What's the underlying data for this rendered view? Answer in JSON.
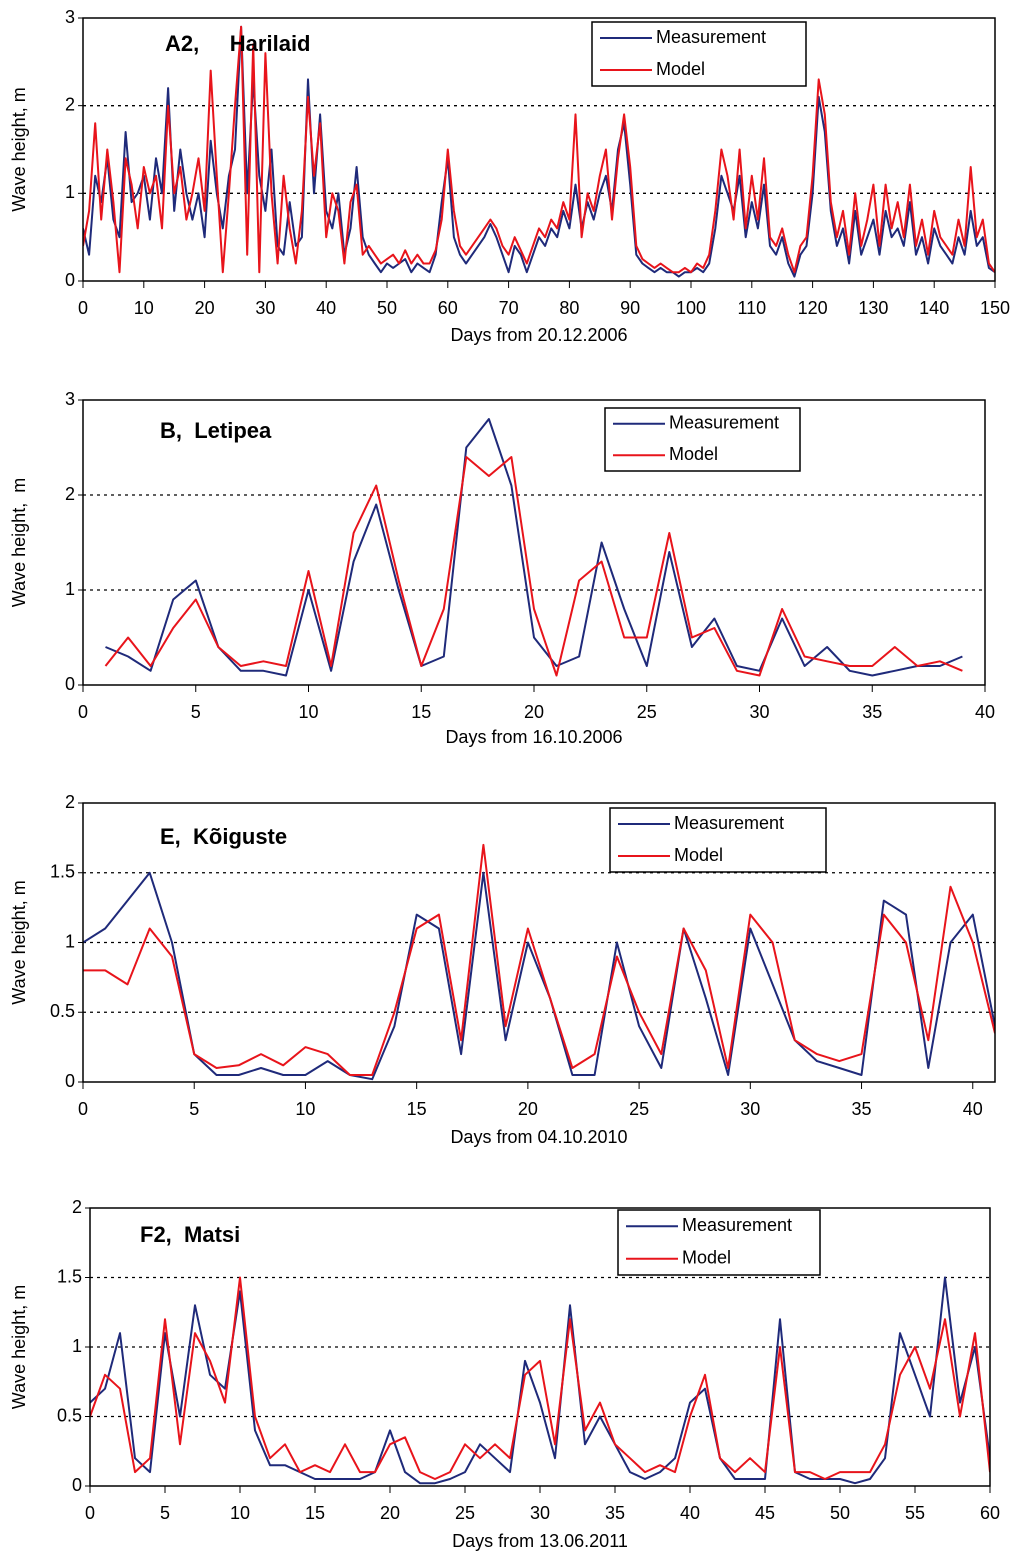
{
  "chart_data": [
    {
      "type": "line",
      "title": "A2,     Harilaid",
      "x_label": "Days from 20.12.2006",
      "y_label": "Wave height, m",
      "xlim": [
        0,
        150
      ],
      "ylim": [
        0,
        3
      ],
      "xticks": [
        0,
        10,
        20,
        30,
        40,
        50,
        60,
        70,
        80,
        90,
        100,
        110,
        120,
        130,
        140,
        150
      ],
      "yticks": [
        0,
        1,
        2,
        3
      ],
      "grid": true,
      "legend": "upper right",
      "x": [
        0,
        1,
        2,
        3,
        4,
        5,
        6,
        7,
        8,
        9,
        10,
        11,
        12,
        13,
        14,
        15,
        16,
        17,
        18,
        19,
        20,
        21,
        22,
        23,
        24,
        25,
        26,
        27,
        28,
        29,
        30,
        31,
        32,
        33,
        34,
        35,
        36,
        37,
        38,
        39,
        40,
        41,
        42,
        43,
        44,
        45,
        46,
        47,
        48,
        49,
        50,
        51,
        52,
        53,
        54,
        55,
        56,
        57,
        58,
        59,
        60,
        61,
        62,
        63,
        64,
        65,
        66,
        67,
        68,
        69,
        70,
        71,
        72,
        73,
        74,
        75,
        76,
        77,
        78,
        79,
        80,
        81,
        82,
        83,
        84,
        85,
        86,
        87,
        88,
        89,
        90,
        91,
        92,
        93,
        94,
        95,
        96,
        97,
        98,
        99,
        100,
        101,
        102,
        103,
        104,
        105,
        106,
        107,
        108,
        109,
        110,
        111,
        112,
        113,
        114,
        115,
        116,
        117,
        118,
        119,
        120,
        121,
        122,
        123,
        124,
        125,
        126,
        127,
        128,
        129,
        130,
        131,
        132,
        133,
        134,
        135,
        136,
        137,
        138,
        139,
        140,
        141,
        142,
        143,
        144,
        145,
        146,
        147,
        148,
        149,
        150
      ],
      "series": [
        {
          "name": "Measurement",
          "color": "#1f2a7a",
          "values": [
            0.6,
            0.3,
            1.2,
            0.9,
            1.4,
            0.7,
            0.5,
            1.7,
            0.9,
            1.0,
            1.2,
            0.7,
            1.4,
            1.0,
            2.2,
            0.8,
            1.5,
            1.0,
            0.7,
            1.0,
            0.5,
            1.6,
            1.0,
            0.6,
            1.2,
            1.5,
            2.9,
            1.0,
            2.3,
            1.2,
            0.8,
            1.5,
            0.4,
            0.3,
            0.9,
            0.4,
            0.5,
            2.3,
            1.0,
            1.9,
            0.8,
            0.6,
            1.0,
            0.3,
            0.6,
            1.3,
            0.5,
            0.3,
            0.2,
            0.1,
            0.2,
            0.15,
            0.2,
            0.25,
            0.1,
            0.2,
            0.15,
            0.1,
            0.3,
            0.9,
            1.4,
            0.5,
            0.3,
            0.2,
            0.3,
            0.4,
            0.5,
            0.65,
            0.5,
            0.3,
            0.1,
            0.4,
            0.3,
            0.1,
            0.3,
            0.5,
            0.4,
            0.6,
            0.5,
            0.8,
            0.6,
            1.1,
            0.6,
            0.9,
            0.7,
            1.0,
            1.2,
            0.8,
            1.5,
            1.8,
            1.1,
            0.3,
            0.2,
            0.15,
            0.1,
            0.15,
            0.1,
            0.1,
            0.05,
            0.1,
            0.1,
            0.15,
            0.1,
            0.2,
            0.6,
            1.2,
            1.0,
            0.8,
            1.2,
            0.5,
            0.9,
            0.6,
            1.1,
            0.4,
            0.3,
            0.5,
            0.2,
            0.05,
            0.3,
            0.4,
            1.0,
            2.1,
            1.7,
            0.8,
            0.4,
            0.6,
            0.2,
            0.8,
            0.3,
            0.5,
            0.7,
            0.3,
            0.8,
            0.5,
            0.6,
            0.4,
            0.9,
            0.3,
            0.5,
            0.2,
            0.6,
            0.4,
            0.3,
            0.2,
            0.5,
            0.3,
            0.8,
            0.4,
            0.5,
            0.15,
            0.1
          ]
        },
        {
          "name": "Model",
          "color": "#e8141b",
          "values": [
            0.4,
            0.8,
            1.8,
            0.7,
            1.5,
            0.9,
            0.1,
            1.4,
            1.1,
            0.6,
            1.3,
            1.0,
            1.2,
            0.6,
            2.0,
            1.0,
            1.3,
            0.7,
            1.0,
            1.4,
            0.8,
            2.4,
            1.2,
            0.1,
            1.0,
            2.0,
            2.9,
            0.3,
            2.7,
            0.1,
            2.6,
            1.0,
            0.2,
            1.2,
            0.6,
            0.2,
            0.8,
            2.1,
            1.2,
            1.8,
            0.5,
            1.0,
            0.8,
            0.2,
            0.9,
            1.1,
            0.3,
            0.4,
            0.3,
            0.2,
            0.25,
            0.3,
            0.2,
            0.35,
            0.2,
            0.3,
            0.2,
            0.2,
            0.35,
            0.7,
            1.5,
            0.8,
            0.4,
            0.3,
            0.4,
            0.5,
            0.6,
            0.7,
            0.6,
            0.4,
            0.3,
            0.5,
            0.35,
            0.2,
            0.4,
            0.6,
            0.5,
            0.7,
            0.6,
            0.9,
            0.7,
            1.9,
            0.5,
            1.0,
            0.8,
            1.2,
            1.5,
            0.7,
            1.4,
            1.9,
            1.3,
            0.4,
            0.25,
            0.2,
            0.15,
            0.2,
            0.15,
            0.1,
            0.1,
            0.15,
            0.1,
            0.2,
            0.15,
            0.3,
            0.8,
            1.5,
            1.2,
            0.7,
            1.5,
            0.6,
            1.2,
            0.7,
            1.4,
            0.5,
            0.4,
            0.6,
            0.3,
            0.1,
            0.4,
            0.5,
            1.2,
            2.3,
            1.9,
            0.9,
            0.5,
            0.8,
            0.3,
            1.0,
            0.4,
            0.7,
            1.1,
            0.4,
            1.1,
            0.6,
            0.9,
            0.5,
            1.1,
            0.4,
            0.7,
            0.3,
            0.8,
            0.5,
            0.4,
            0.3,
            0.7,
            0.4,
            1.3,
            0.5,
            0.7,
            0.2,
            0.1
          ]
        }
      ]
    },
    {
      "type": "line",
      "title": "B,  Letipea",
      "x_label": "Days from 16.10.2006",
      "y_label": "Wave height,  m",
      "xlim": [
        0,
        40
      ],
      "ylim": [
        0,
        3
      ],
      "xticks": [
        0,
        5,
        10,
        15,
        20,
        25,
        30,
        35,
        40
      ],
      "yticks": [
        0,
        1,
        2,
        3
      ],
      "grid": true,
      "legend": "upper right",
      "x": [
        1,
        2,
        3,
        4,
        5,
        6,
        7,
        8,
        9,
        10,
        11,
        12,
        13,
        14,
        15,
        16,
        17,
        18,
        19,
        20,
        21,
        22,
        23,
        24,
        25,
        26,
        27,
        28,
        29,
        30,
        31,
        32,
        33,
        34,
        35,
        36,
        37,
        38,
        39
      ],
      "series": [
        {
          "name": "Measurement",
          "color": "#1f2a7a",
          "values": [
            0.4,
            0.3,
            0.15,
            0.9,
            1.1,
            0.4,
            0.15,
            0.15,
            0.1,
            1.0,
            0.15,
            1.3,
            1.9,
            1.0,
            0.2,
            0.3,
            2.5,
            2.8,
            2.1,
            0.5,
            0.2,
            0.3,
            1.5,
            0.8,
            0.2,
            1.4,
            0.4,
            0.7,
            0.2,
            0.15,
            0.7,
            0.2,
            0.4,
            0.15,
            0.1,
            0.15,
            0.2,
            0.2,
            0.3
          ]
        },
        {
          "name": "Model",
          "color": "#e8141b",
          "values": [
            0.2,
            0.5,
            0.2,
            0.6,
            0.9,
            0.4,
            0.2,
            0.25,
            0.2,
            1.2,
            0.2,
            1.6,
            2.1,
            1.1,
            0.2,
            0.8,
            2.4,
            2.2,
            2.4,
            0.8,
            0.1,
            1.1,
            1.3,
            0.5,
            0.5,
            1.6,
            0.5,
            0.6,
            0.15,
            0.1,
            0.8,
            0.3,
            0.25,
            0.2,
            0.2,
            0.4,
            0.2,
            0.25,
            0.15
          ]
        }
      ]
    },
    {
      "type": "line",
      "title": "E,  Kõiguste",
      "x_label": "Days from 04.10.2010",
      "y_label": "Wave height, m",
      "xlim": [
        0,
        41
      ],
      "ylim": [
        0,
        2
      ],
      "xticks": [
        0,
        5,
        10,
        15,
        20,
        25,
        30,
        35,
        40
      ],
      "yticks": [
        0,
        0.5,
        1,
        1.5,
        2
      ],
      "grid": true,
      "legend": "upper right",
      "x": [
        0,
        1,
        2,
        3,
        4,
        5,
        6,
        7,
        8,
        9,
        10,
        11,
        12,
        13,
        14,
        15,
        16,
        17,
        18,
        19,
        20,
        21,
        22,
        23,
        24,
        25,
        26,
        27,
        28,
        29,
        30,
        31,
        32,
        33,
        34,
        35,
        36,
        37,
        38,
        39,
        40,
        41
      ],
      "series": [
        {
          "name": "Measurement",
          "color": "#1f2a7a",
          "values": [
            1.0,
            1.1,
            1.3,
            1.5,
            1.0,
            0.2,
            0.05,
            0.05,
            0.1,
            0.05,
            0.05,
            0.15,
            0.05,
            0.02,
            0.4,
            1.2,
            1.1,
            0.2,
            1.5,
            0.3,
            1.0,
            0.6,
            0.05,
            0.05,
            1.0,
            0.4,
            0.1,
            1.1,
            0.6,
            0.05,
            1.1,
            0.7,
            0.3,
            0.15,
            0.1,
            0.05,
            1.3,
            1.2,
            0.1,
            1.0,
            1.2,
            0.4
          ]
        },
        {
          "name": "Model",
          "color": "#e8141b",
          "values": [
            0.8,
            0.8,
            0.7,
            1.1,
            0.9,
            0.2,
            0.1,
            0.12,
            0.2,
            0.12,
            0.25,
            0.2,
            0.05,
            0.05,
            0.5,
            1.1,
            1.2,
            0.3,
            1.7,
            0.4,
            1.1,
            0.6,
            0.1,
            0.2,
            0.9,
            0.5,
            0.2,
            1.1,
            0.8,
            0.1,
            1.2,
            1.0,
            0.3,
            0.2,
            0.15,
            0.2,
            1.2,
            1.0,
            0.3,
            1.4,
            1.0,
            0.35
          ]
        }
      ]
    },
    {
      "type": "line",
      "title": "F2,  Matsi",
      "x_label": "Days from 13.06.2011",
      "y_label": "Wave height, m",
      "xlim": [
        0,
        60
      ],
      "ylim": [
        0,
        2
      ],
      "xticks": [
        0,
        5,
        10,
        15,
        20,
        25,
        30,
        35,
        40,
        45,
        50,
        55,
        60
      ],
      "yticks": [
        0,
        0.5,
        1,
        1.5,
        2
      ],
      "grid": true,
      "legend": "upper right",
      "x": [
        0,
        1,
        2,
        3,
        4,
        5,
        6,
        7,
        8,
        9,
        10,
        11,
        12,
        13,
        14,
        15,
        16,
        17,
        18,
        19,
        20,
        21,
        22,
        23,
        24,
        25,
        26,
        27,
        28,
        29,
        30,
        31,
        32,
        33,
        34,
        35,
        36,
        37,
        38,
        39,
        40,
        41,
        42,
        43,
        44,
        45,
        46,
        47,
        48,
        49,
        50,
        51,
        52,
        53,
        54,
        55,
        56,
        57,
        58,
        59,
        60
      ],
      "series": [
        {
          "name": "Measurement",
          "color": "#1f2a7a",
          "values": [
            0.6,
            0.7,
            1.1,
            0.2,
            0.1,
            1.1,
            0.5,
            1.3,
            0.8,
            0.7,
            1.4,
            0.4,
            0.15,
            0.15,
            0.1,
            0.05,
            0.05,
            0.05,
            0.05,
            0.1,
            0.4,
            0.1,
            0.02,
            0.02,
            0.05,
            0.1,
            0.3,
            0.2,
            0.1,
            0.9,
            0.6,
            0.2,
            1.3,
            0.3,
            0.5,
            0.3,
            0.1,
            0.05,
            0.1,
            0.2,
            0.6,
            0.7,
            0.2,
            0.05,
            0.05,
            0.05,
            1.2,
            0.1,
            0.05,
            0.05,
            0.05,
            0.02,
            0.05,
            0.2,
            1.1,
            0.8,
            0.5,
            1.5,
            0.6,
            1.0,
            0.2
          ]
        },
        {
          "name": "Model",
          "color": "#e8141b",
          "values": [
            0.5,
            0.8,
            0.7,
            0.1,
            0.2,
            1.2,
            0.3,
            1.1,
            0.9,
            0.6,
            1.5,
            0.5,
            0.2,
            0.3,
            0.1,
            0.15,
            0.1,
            0.3,
            0.1,
            0.1,
            0.3,
            0.35,
            0.1,
            0.05,
            0.1,
            0.3,
            0.2,
            0.3,
            0.2,
            0.8,
            0.9,
            0.3,
            1.2,
            0.4,
            0.6,
            0.3,
            0.2,
            0.1,
            0.15,
            0.1,
            0.5,
            0.8,
            0.2,
            0.1,
            0.2,
            0.1,
            1.0,
            0.1,
            0.1,
            0.05,
            0.1,
            0.1,
            0.1,
            0.3,
            0.8,
            1.0,
            0.7,
            1.2,
            0.5,
            1.1,
            0.1
          ]
        }
      ]
    }
  ]
}
